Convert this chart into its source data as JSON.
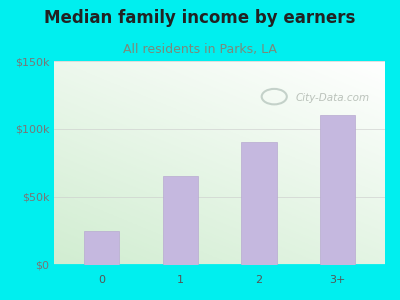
{
  "title": "Median family income by earners",
  "subtitle": "All residents in Parks, LA",
  "categories": [
    "0",
    "1",
    "2",
    "3+"
  ],
  "values": [
    25000,
    65000,
    90000,
    110000
  ],
  "bar_color": "#c5b8df",
  "bar_edgecolor": "#b8aad0",
  "title_color": "#222222",
  "subtitle_color": "#7a8a7a",
  "outer_bg": "#00efef",
  "yticks": [
    0,
    50000,
    100000,
    150000
  ],
  "ytick_labels": [
    "$0",
    "$50k",
    "$100k",
    "$150k"
  ],
  "ylim": [
    0,
    150000
  ],
  "watermark": "City-Data.com",
  "title_fontsize": 12,
  "subtitle_fontsize": 9,
  "tick_fontsize": 8
}
